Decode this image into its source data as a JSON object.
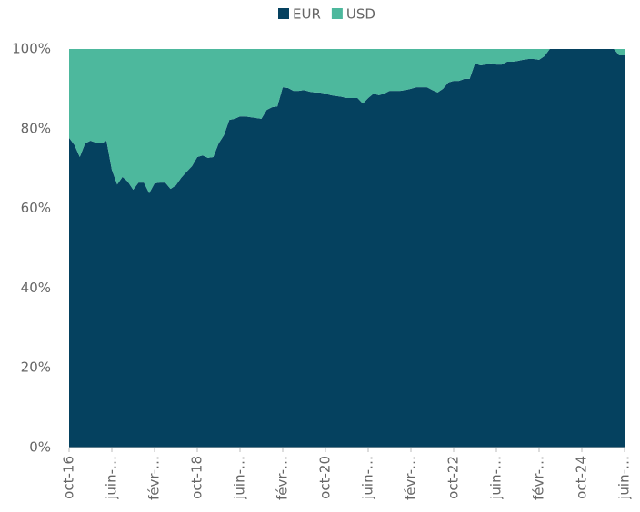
{
  "chart_data": {
    "type": "area",
    "stacked": true,
    "categories": [
      "oct-16",
      null,
      null,
      null,
      null,
      null,
      null,
      null,
      "juin-…",
      null,
      null,
      null,
      null,
      null,
      null,
      null,
      "févr-…",
      null,
      null,
      null,
      null,
      null,
      null,
      null,
      "oct-18",
      null,
      null,
      null,
      null,
      null,
      null,
      null,
      "juin-…",
      null,
      null,
      null,
      null,
      null,
      null,
      null,
      "févr-…",
      null,
      null,
      null,
      null,
      null,
      null,
      null,
      "oct-20",
      null,
      null,
      null,
      null,
      null,
      null,
      null,
      "juin-…",
      null,
      null,
      null,
      null,
      null,
      null,
      null,
      "févr-…",
      null,
      null,
      null,
      null,
      null,
      null,
      null,
      "oct-22",
      null,
      null,
      null,
      null,
      null,
      null,
      null,
      "juin-…",
      null,
      null,
      null,
      null,
      null,
      null,
      null,
      "févr-…",
      null,
      null,
      null,
      null,
      null,
      null,
      null,
      "oct-24",
      null,
      null,
      null,
      null,
      null,
      null,
      null,
      "juin-…"
    ],
    "series": [
      {
        "name": "EUR",
        "color": "#05415f",
        "values": [
          77.7,
          75.9,
          72.9,
          76.3,
          77,
          76.5,
          76.3,
          77,
          69.7,
          66,
          67.9,
          66.7,
          64.7,
          66.5,
          66.5,
          63.8,
          66.3,
          66.5,
          66.5,
          64.9,
          65.8,
          67.7,
          69.2,
          70.6,
          72.9,
          73.3,
          72.7,
          72.9,
          76.3,
          78.4,
          82.2,
          82.5,
          83.1,
          83.1,
          82.9,
          82.7,
          82.5,
          84.7,
          85.4,
          85.6,
          90.4,
          90.2,
          89.5,
          89.5,
          89.7,
          89.3,
          89.1,
          89.1,
          88.8,
          88.4,
          88.2,
          88,
          87.7,
          87.7,
          87.7,
          86.3,
          87.7,
          88.8,
          88.4,
          88.8,
          89.5,
          89.5,
          89.5,
          89.7,
          90,
          90.4,
          90.4,
          90.4,
          89.7,
          89.1,
          90,
          91.6,
          92,
          92,
          92.5,
          92.5,
          96.4,
          95.9,
          96.1,
          96.4,
          96.1,
          96.1,
          96.8,
          96.8,
          97,
          97.3,
          97.5,
          97.5,
          97.3,
          98.2,
          100,
          100,
          100,
          100,
          100,
          100,
          100,
          100,
          100,
          100,
          100,
          100,
          100,
          98.4,
          98.4
        ]
      },
      {
        "name": "USD",
        "color": "#4db89d",
        "values": [
          22.3,
          24.1,
          27.1,
          23.7,
          23,
          23.5,
          23.7,
          23,
          30.3,
          34,
          32.1,
          33.3,
          35.3,
          33.5,
          33.5,
          36.2,
          33.7,
          33.5,
          33.5,
          35.1,
          34.2,
          32.3,
          30.8,
          29.4,
          27.1,
          26.7,
          27.3,
          27.1,
          23.7,
          21.6,
          17.8,
          17.5,
          16.9,
          16.9,
          17.1,
          17.3,
          17.5,
          15.3,
          14.6,
          14.4,
          9.6,
          9.8,
          10.5,
          10.5,
          10.3,
          10.7,
          10.9,
          10.9,
          11.2,
          11.6,
          11.8,
          12,
          12.3,
          12.3,
          12.3,
          13.7,
          12.3,
          11.2,
          11.6,
          11.2,
          10.5,
          10.5,
          10.5,
          10.3,
          10,
          9.6,
          9.6,
          9.6,
          10.3,
          10.9,
          10,
          8.4,
          8,
          8,
          7.5,
          7.5,
          3.6,
          4.1,
          3.9,
          3.6,
          3.9,
          3.9,
          3.2,
          3.2,
          3,
          2.7,
          2.5,
          2.5,
          2.7,
          1.8,
          0,
          0,
          0,
          0,
          0,
          0,
          0,
          0,
          0,
          0,
          0,
          0,
          0,
          1.6,
          1.6
        ]
      }
    ],
    "ylim": [
      0,
      100
    ],
    "yticks": [
      {
        "value": 0,
        "label": "0%"
      },
      {
        "value": 20,
        "label": "20%"
      },
      {
        "value": 40,
        "label": "40%"
      },
      {
        "value": 60,
        "label": "60%"
      },
      {
        "value": 80,
        "label": "80%"
      },
      {
        "value": 100,
        "label": "100%"
      }
    ],
    "legend": "top"
  }
}
